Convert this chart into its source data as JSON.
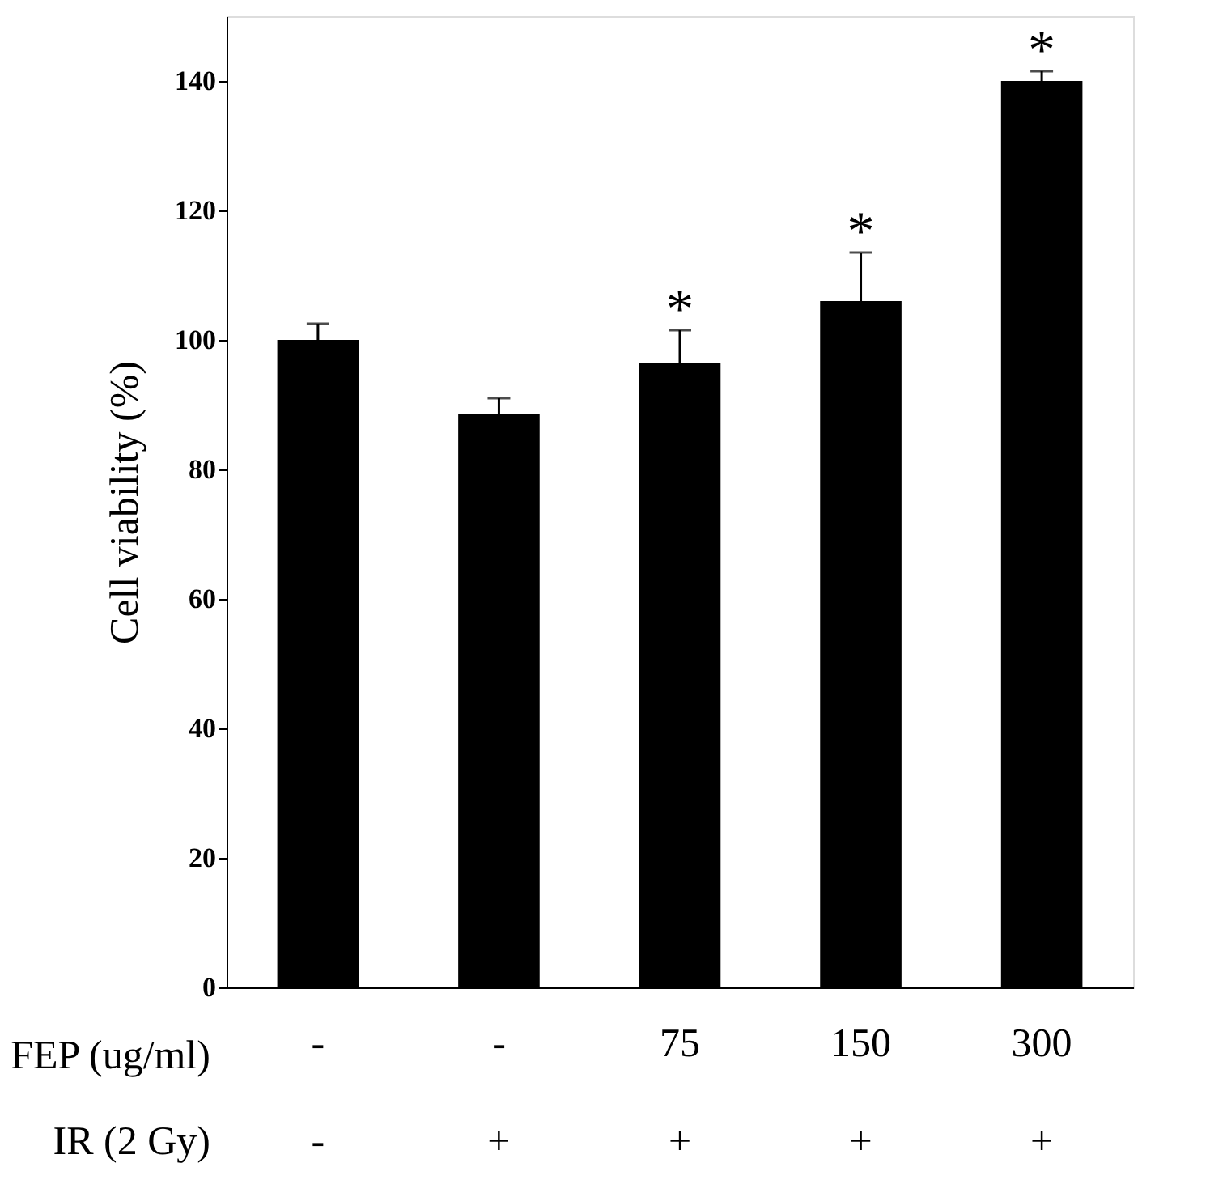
{
  "chart_data": {
    "type": "bar",
    "ylabel": "Cell viability (%)",
    "categories": [
      "-",
      "-",
      "75",
      "150",
      "300"
    ],
    "values": [
      100,
      88.5,
      96.5,
      106,
      140
    ],
    "errors": [
      2.5,
      2.5,
      5,
      7.5,
      1.5
    ],
    "color": "#000000",
    "ylim": [
      0,
      150
    ],
    "yticks": [
      0,
      20,
      40,
      60,
      80,
      100,
      120,
      140
    ],
    "grid": false,
    "annotations": [
      "FEP (ug/ml)",
      "IR (2 Gy)",
      "-",
      "+",
      "+",
      "+",
      "+",
      {
        "text": "*",
        "x": "75",
        "y": 101.5
      },
      {
        "text": "*",
        "x": "150",
        "y": 113.5
      },
      {
        "text": "*",
        "x": "300",
        "y": 141.5
      }
    ]
  }
}
